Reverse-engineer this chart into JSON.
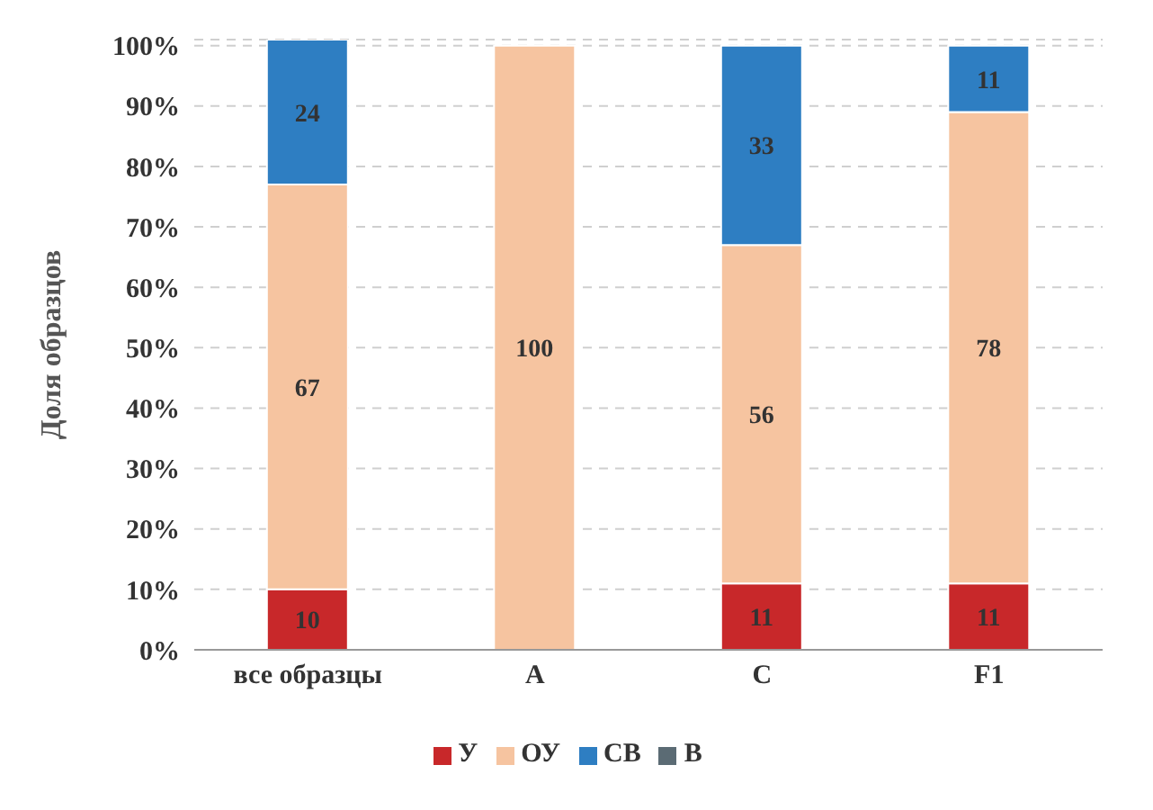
{
  "chart_data": {
    "type": "bar",
    "stacked": true,
    "ylabel": "Доля образцов",
    "categories": [
      "все образцы",
      "A",
      "C",
      "F1"
    ],
    "series": [
      {
        "name": "У",
        "color": "#c8282a",
        "values": [
          10,
          0,
          11,
          11
        ],
        "value_labels": [
          "10",
          null,
          "11",
          "11"
        ]
      },
      {
        "name": "ОУ",
        "color": "#f6c4a0",
        "values": [
          67,
          100,
          56,
          78
        ],
        "value_labels": [
          "67",
          "100",
          "56",
          "78"
        ]
      },
      {
        "name": "СВ",
        "color": "#2e7ec2",
        "values": [
          24,
          0,
          33,
          11
        ],
        "value_labels": [
          "24",
          null,
          "33",
          "11"
        ]
      },
      {
        "name": "В",
        "color": "#5b6b74",
        "values": [
          0,
          0,
          0,
          0
        ]
      }
    ],
    "ylim": [
      0,
      101
    ],
    "yticks": [
      {
        "value": 0,
        "label": "0%"
      },
      {
        "value": 10,
        "label": "10%"
      },
      {
        "value": 20,
        "label": "20%"
      },
      {
        "value": 30,
        "label": "30%"
      },
      {
        "value": 40,
        "label": "40%"
      },
      {
        "value": 50,
        "label": "50%"
      },
      {
        "value": 60,
        "label": "60%"
      },
      {
        "value": 70,
        "label": "70%"
      },
      {
        "value": 80,
        "label": "80%"
      },
      {
        "value": 90,
        "label": "90%"
      },
      {
        "value": 100,
        "label": "100%"
      }
    ],
    "grid": "y",
    "legend": "bottom"
  }
}
